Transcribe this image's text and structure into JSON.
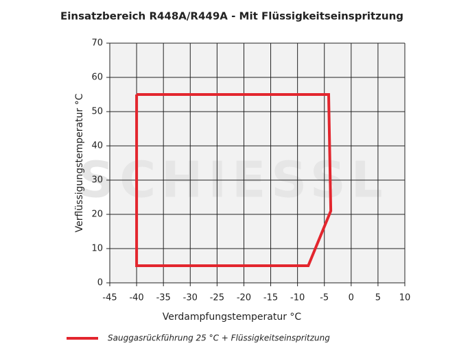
{
  "chart_data": {
    "type": "line",
    "title": "Einsatzbereich R448A/R449A - Mit Flüssigkeitseinspritzung",
    "x_label": "Verdampfungstemperatur °C",
    "y_label": "Verflüssigungstemperatur °C",
    "watermark": "SCHIESSL",
    "x": [
      -40,
      -4.2,
      -3.8,
      -8,
      -40,
      -40
    ],
    "series": [
      {
        "name": "Sauggasrückführung 25 °C + Flüssigkeitseinspritzung",
        "color": "#e3262e",
        "values": [
          55,
          55,
          21,
          5,
          5,
          55
        ]
      }
    ],
    "xlim": [
      -45,
      10
    ],
    "xticks": [
      -45,
      -40,
      -35,
      -30,
      -25,
      -20,
      -15,
      -10,
      -5,
      0,
      5,
      10
    ],
    "ylim": [
      0,
      70
    ],
    "yticks": [
      0,
      10,
      20,
      30,
      40,
      50,
      60,
      70
    ],
    "grid": true
  }
}
